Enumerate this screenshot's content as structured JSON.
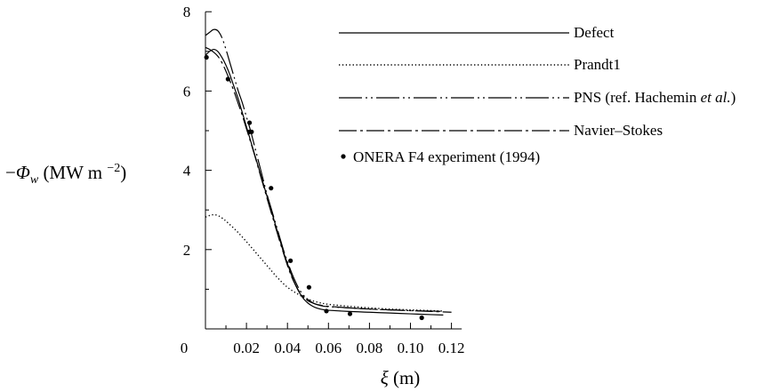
{
  "chart_data": {
    "type": "line",
    "title": "",
    "xlabel": "ξ (m)",
    "ylabel": "−Φw (MW m−2)",
    "xlim": [
      0,
      0.125
    ],
    "ylim": [
      0,
      8
    ],
    "x_ticks": [
      {
        "value": 0,
        "label": "0"
      },
      {
        "value": 0.02,
        "label": "0.02"
      },
      {
        "value": 0.04,
        "label": "0.04"
      },
      {
        "value": 0.06,
        "label": "0.06"
      },
      {
        "value": 0.08,
        "label": "0.08"
      },
      {
        "value": 0.1,
        "label": "0.10"
      },
      {
        "value": 0.12,
        "label": "0.12"
      }
    ],
    "y_ticks": [
      {
        "value": 0,
        "label": ""
      },
      {
        "value": 2,
        "label": "2"
      },
      {
        "value": 4,
        "label": "4"
      },
      {
        "value": 6,
        "label": "6"
      },
      {
        "value": 8,
        "label": "8"
      }
    ],
    "grid": false,
    "legend_position": "top-right",
    "series": [
      {
        "name": "Defect",
        "style": "solid",
        "x": [
          0,
          0.002,
          0.004,
          0.006,
          0.008,
          0.01,
          0.012,
          0.014,
          0.016,
          0.018,
          0.02,
          0.022,
          0.024,
          0.026,
          0.028,
          0.03,
          0.032,
          0.034,
          0.036,
          0.038,
          0.04,
          0.042,
          0.044,
          0.046,
          0.048,
          0.05,
          0.052,
          0.054,
          0.056,
          0.058,
          0.06,
          0.07,
          0.08,
          0.09,
          0.1,
          0.11,
          0.116
        ],
        "y": [
          6.9,
          7.0,
          7.05,
          7.0,
          6.85,
          6.65,
          6.4,
          6.1,
          5.8,
          5.45,
          5.1,
          4.75,
          4.4,
          4.05,
          3.7,
          3.35,
          3.0,
          2.65,
          2.3,
          1.95,
          1.65,
          1.35,
          1.1,
          0.9,
          0.75,
          0.65,
          0.58,
          0.53,
          0.5,
          0.48,
          0.47,
          0.44,
          0.42,
          0.4,
          0.38,
          0.36,
          0.35
        ]
      },
      {
        "name": "Prandt1",
        "style": "dotted",
        "x": [
          0,
          0.002,
          0.004,
          0.006,
          0.008,
          0.01,
          0.015,
          0.02,
          0.025,
          0.03,
          0.035,
          0.04,
          0.045,
          0.05,
          0.055,
          0.06,
          0.07,
          0.08,
          0.09,
          0.1,
          0.11,
          0.116
        ],
        "y": [
          2.82,
          2.86,
          2.88,
          2.86,
          2.8,
          2.72,
          2.48,
          2.2,
          1.9,
          1.6,
          1.3,
          1.05,
          0.88,
          0.75,
          0.67,
          0.62,
          0.57,
          0.53,
          0.5,
          0.48,
          0.46,
          0.45
        ]
      },
      {
        "name": "PNS (ref. Hachemin et al.)",
        "style": "dash-dot-dot",
        "x": [
          0,
          0.002,
          0.004,
          0.006,
          0.008,
          0.01,
          0.012,
          0.014,
          0.016,
          0.018,
          0.02,
          0.022,
          0.024,
          0.026,
          0.028,
          0.03,
          0.032,
          0.034,
          0.036,
          0.038,
          0.04,
          0.042,
          0.044,
          0.046,
          0.048,
          0.05,
          0.052,
          0.054,
          0.056,
          0.058,
          0.06,
          0.07,
          0.08,
          0.09,
          0.1,
          0.11,
          0.116
        ],
        "y": [
          7.4,
          7.48,
          7.55,
          7.52,
          7.35,
          7.05,
          6.7,
          6.35,
          6.0,
          5.7,
          5.35,
          5.0,
          4.6,
          4.2,
          3.8,
          3.4,
          3.05,
          2.7,
          2.35,
          2.0,
          1.7,
          1.42,
          1.18,
          0.98,
          0.84,
          0.74,
          0.67,
          0.62,
          0.59,
          0.57,
          0.56,
          0.53,
          0.5,
          0.48,
          0.46,
          0.45,
          0.44
        ]
      },
      {
        "name": "Navier–Stokes",
        "style": "dash-dot",
        "x": [
          0,
          0.002,
          0.004,
          0.006,
          0.008,
          0.01,
          0.012,
          0.014,
          0.016,
          0.018,
          0.02,
          0.022,
          0.024,
          0.026,
          0.028,
          0.03,
          0.032,
          0.034,
          0.036,
          0.038,
          0.04,
          0.042,
          0.044,
          0.046,
          0.048,
          0.05,
          0.052,
          0.054,
          0.056,
          0.058,
          0.06,
          0.07,
          0.08,
          0.09,
          0.1,
          0.11,
          0.12
        ],
        "y": [
          7.1,
          7.05,
          6.98,
          6.88,
          6.72,
          6.5,
          6.25,
          5.98,
          5.68,
          5.38,
          5.05,
          4.72,
          4.38,
          4.02,
          3.66,
          3.3,
          2.95,
          2.6,
          2.25,
          1.92,
          1.6,
          1.32,
          1.1,
          0.92,
          0.8,
          0.71,
          0.66,
          0.62,
          0.6,
          0.58,
          0.57,
          0.53,
          0.5,
          0.48,
          0.46,
          0.44,
          0.42
        ]
      },
      {
        "name": "ONERA F4 experiment (1994)",
        "style": "markers",
        "x": [
          0.0005,
          0.011,
          0.0215,
          0.0215,
          0.0225,
          0.032,
          0.0415,
          0.0505,
          0.059,
          0.0705,
          0.1055
        ],
        "y": [
          6.85,
          6.3,
          5.2,
          4.97,
          4.97,
          3.55,
          1.72,
          1.05,
          0.45,
          0.38,
          0.28
        ]
      }
    ]
  }
}
